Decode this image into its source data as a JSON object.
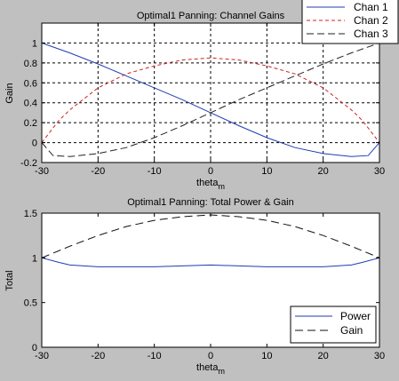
{
  "figure": {
    "background": "#c0c0c0",
    "plot_background": "#ffffff"
  },
  "chart_data": [
    {
      "type": "line",
      "title": "Optimal1 Panning: Channel Gains",
      "xlabel_main": "theta",
      "xlabel_sub": "m",
      "ylabel": "Gain",
      "xlim": [
        -30,
        30
      ],
      "ylim": [
        -0.2,
        1.2
      ],
      "xticks": [
        -30,
        -20,
        -10,
        0,
        10,
        20,
        30
      ],
      "yticks": [
        -0.2,
        0,
        0.2,
        0.4,
        0.6,
        0.8,
        1
      ],
      "ytick_labels": [
        "-0.2",
        "0",
        "0.2",
        "0.4",
        "0.6",
        "0.8",
        "1"
      ],
      "grid": true,
      "legend_position": "top-right, outside plot",
      "series": [
        {
          "name": "Chan 1",
          "color": "#1f3bb3",
          "dash": "solid",
          "x": [
            -30,
            -25,
            -20,
            -15,
            -10,
            -5,
            0,
            5,
            10,
            15,
            20,
            25,
            28,
            30
          ],
          "y": [
            1.0,
            0.9,
            0.79,
            0.67,
            0.55,
            0.43,
            0.3,
            0.17,
            0.05,
            -0.05,
            -0.11,
            -0.14,
            -0.13,
            0.0
          ]
        },
        {
          "name": "Chan 2",
          "color": "#cc2222",
          "dash": "4,3",
          "x": [
            -30,
            -27,
            -25,
            -20,
            -15,
            -10,
            -5,
            0,
            5,
            10,
            15,
            20,
            25,
            27,
            30
          ],
          "y": [
            0.0,
            0.22,
            0.33,
            0.55,
            0.69,
            0.77,
            0.83,
            0.85,
            0.83,
            0.77,
            0.69,
            0.55,
            0.33,
            0.22,
            0.0
          ]
        },
        {
          "name": "Chan 3",
          "color": "#222222",
          "dash": "8,4",
          "x": [
            -30,
            -28,
            -25,
            -20,
            -15,
            -10,
            -5,
            0,
            5,
            10,
            15,
            20,
            25,
            30
          ],
          "y": [
            0.0,
            -0.13,
            -0.14,
            -0.11,
            -0.05,
            0.05,
            0.17,
            0.3,
            0.43,
            0.55,
            0.67,
            0.79,
            0.9,
            1.0
          ]
        }
      ]
    },
    {
      "type": "line",
      "title": "Optimal1 Panning: Total Power & Gain",
      "xlabel_main": "theta",
      "xlabel_sub": "m",
      "ylabel": "Total",
      "xlim": [
        -30,
        30
      ],
      "ylim": [
        0,
        1.5
      ],
      "xticks": [
        -30,
        -20,
        -10,
        0,
        10,
        20,
        30
      ],
      "yticks": [
        0,
        0.5,
        1,
        1.5
      ],
      "ytick_labels": [
        "0",
        "0.5",
        "1",
        "1.5"
      ],
      "grid": false,
      "legend_position": "bottom-right",
      "series": [
        {
          "name": "Power",
          "color": "#1f3bb3",
          "dash": "solid",
          "x": [
            -30,
            -27,
            -25,
            -20,
            -15,
            -10,
            -5,
            0,
            5,
            10,
            15,
            20,
            25,
            27,
            30
          ],
          "y": [
            1.0,
            0.95,
            0.92,
            0.9,
            0.9,
            0.9,
            0.91,
            0.92,
            0.91,
            0.9,
            0.9,
            0.9,
            0.92,
            0.95,
            1.0
          ]
        },
        {
          "name": "Gain",
          "color": "#111111",
          "dash": "9,5",
          "x": [
            -30,
            -25,
            -20,
            -15,
            -10,
            -5,
            0,
            5,
            10,
            15,
            20,
            25,
            30
          ],
          "y": [
            1.0,
            1.13,
            1.25,
            1.35,
            1.42,
            1.46,
            1.48,
            1.46,
            1.42,
            1.35,
            1.25,
            1.13,
            1.0
          ]
        }
      ]
    }
  ]
}
